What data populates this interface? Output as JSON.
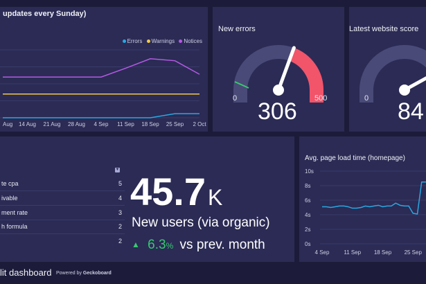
{
  "colors": {
    "background": "#1c1c3a",
    "panel": "#2b2b55",
    "errors": "#29a8e0",
    "warnings": "#f2c94c",
    "notices": "#b659e4",
    "gauge_red": "#f2546a",
    "gauge_green": "#37c96f",
    "gauge_track": "#4a4a78",
    "positive": "#37c96f"
  },
  "top_chart": {
    "title": "updates every Sunday)",
    "legend": [
      "Errors",
      "Warnings",
      "Notices"
    ],
    "x_ticks": [
      "Aug",
      "14 Aug",
      "21 Aug",
      "28 Aug",
      "4 Sep",
      "11 Sep",
      "18 Sep",
      "25 Sep",
      "2 Oct"
    ]
  },
  "gauge_errors": {
    "title": "New errors",
    "min": "0",
    "max": "500",
    "value": "306"
  },
  "gauge_score": {
    "title": "Latest website score",
    "min": "0",
    "value": "84"
  },
  "list": {
    "icon": "sort-icon",
    "rows": [
      {
        "label": "te cpa",
        "value": "5"
      },
      {
        "label": "ivable",
        "value": "4"
      },
      {
        "label": "ment rate",
        "value": "3"
      },
      {
        "label": "h formula",
        "value": "2"
      },
      {
        "label": "",
        "value": "2"
      }
    ]
  },
  "kpi": {
    "value": "45.7",
    "suffix": "K",
    "label": "New users (via organic)",
    "change": "6.3",
    "change_unit": "%",
    "change_text": "vs prev. month",
    "arrow": "up-arrow-icon"
  },
  "load_chart": {
    "title": "Avg. page load time (homepage)",
    "y_ticks": [
      "10s",
      "8s",
      "6s",
      "4s",
      "2s",
      "0s"
    ],
    "x_ticks": [
      "4 Sep",
      "11 Sep",
      "18 Sep",
      "25 Sep"
    ]
  },
  "footer": {
    "dashboard_name": "lit dashboard",
    "powered_prefix": "Powered by ",
    "powered_brand": "Geckoboard"
  },
  "chart_data": [
    {
      "type": "line",
      "title": "updates every Sunday)",
      "categories": [
        "Aug",
        "14 Aug",
        "21 Aug",
        "28 Aug",
        "4 Sep",
        "11 Sep",
        "18 Sep",
        "25 Sep",
        "2 Oct"
      ],
      "ylim": [
        0,
        100
      ],
      "series": [
        {
          "name": "Notices",
          "values": [
            60,
            60,
            60,
            60,
            60,
            73,
            87,
            84,
            64
          ]
        },
        {
          "name": "Warnings",
          "values": [
            35,
            35,
            35,
            35,
            35,
            35,
            35,
            35,
            35
          ]
        },
        {
          "name": "Errors",
          "values": [
            0,
            0,
            0,
            0,
            0,
            0,
            0,
            6,
            6
          ]
        }
      ]
    },
    {
      "type": "line",
      "title": "Avg. page load time (homepage)",
      "x": [
        "4 Sep",
        "5 Sep",
        "6 Sep",
        "7 Sep",
        "8 Sep",
        "9 Sep",
        "10 Sep",
        "11 Sep",
        "12 Sep",
        "13 Sep",
        "14 Sep",
        "15 Sep",
        "16 Sep",
        "17 Sep",
        "18 Sep",
        "19 Sep",
        "20 Sep",
        "21 Sep",
        "22 Sep",
        "23 Sep",
        "24 Sep",
        "25 Sep",
        "26 Sep",
        "27 Sep",
        "28 Sep"
      ],
      "values": [
        5.1,
        5.1,
        5.0,
        5.1,
        5.2,
        5.2,
        5.1,
        4.9,
        4.9,
        5.0,
        5.2,
        5.1,
        5.2,
        5.3,
        5.1,
        5.2,
        5.2,
        5.6,
        5.3,
        5.2,
        5.2,
        4.2,
        4.1,
        8.5,
        8.5
      ],
      "ylim": [
        0,
        10
      ],
      "ylabel": "s"
    }
  ]
}
